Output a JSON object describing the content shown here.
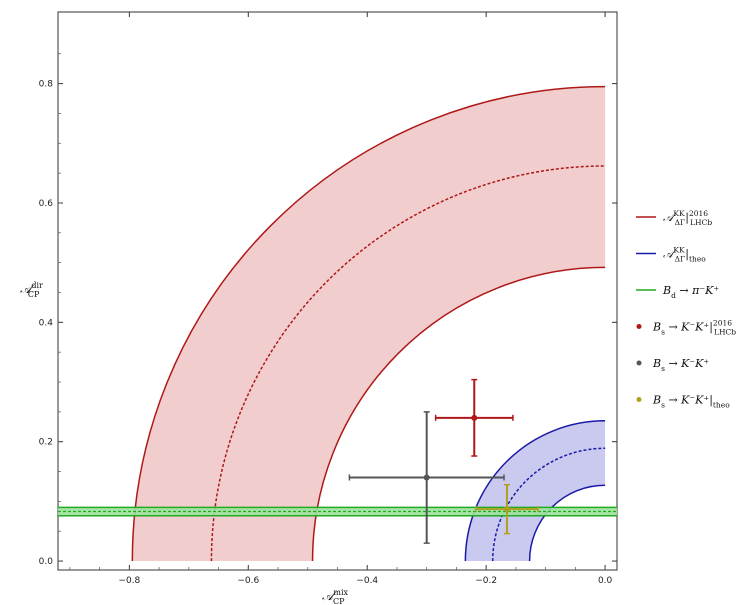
{
  "chart_data": {
    "type": "scatter",
    "xlabel": "𝒜",
    "xlabel_sup": "mix",
    "xlabel_sub": "CP",
    "ylabel": "𝒜",
    "ylabel_sup": "dir",
    "ylabel_sub": "CP",
    "xlim": [
      -0.92,
      0.02
    ],
    "ylim": [
      -0.015,
      0.92
    ],
    "x_ticks": [
      -0.8,
      -0.6,
      -0.4,
      -0.2,
      0.0
    ],
    "x_tick_labels": [
      "−0.8",
      "−0.6",
      "−0.4",
      "−0.2",
      "0.0"
    ],
    "y_ticks": [
      0.0,
      0.2,
      0.4,
      0.6,
      0.8
    ],
    "y_tick_labels": [
      "0.0",
      "0.2",
      "0.4",
      "0.6",
      "0.8"
    ],
    "grid": false,
    "legend_position": "right",
    "bands": [
      {
        "kind": "annulus",
        "r_center": 0.662,
        "r_inner": 0.492,
        "r_outer": 0.795,
        "line_color": "#b01818",
        "fill_color": "#f0c8c8"
      },
      {
        "kind": "annulus",
        "r_center": 0.189,
        "r_inner": 0.127,
        "r_outer": 0.235,
        "line_color": "#1a1aa8",
        "fill_color": "#c4c4ee"
      },
      {
        "kind": "horizontal",
        "y_center": 0.083,
        "y_low": 0.076,
        "y_high": 0.09,
        "line_color": "#22aa22",
        "fill_color": "#9de29d"
      }
    ],
    "points": [
      {
        "x": -0.22,
        "y": 0.24,
        "xerr": 0.065,
        "yerr": 0.064,
        "color": "#b01818"
      },
      {
        "x": -0.3,
        "y": 0.14,
        "xerr": 0.13,
        "yerr": 0.11,
        "color": "#555555"
      },
      {
        "x": -0.165,
        "y": 0.087,
        "xerr": 0.052,
        "yerr": 0.041,
        "color": "#b0a020"
      }
    ],
    "legend": [
      {
        "symbol": "line",
        "color": "#b01818",
        "label": "𝒜",
        "sup": "KK",
        "sub": "ΔΓ",
        "suffix": "|",
        "suffix_sup": "2016",
        "suffix_sub": "LHCb"
      },
      {
        "symbol": "line",
        "color": "#1a1aa8",
        "label": "𝒜",
        "sup": "KK",
        "sub": "ΔΓ",
        "suffix": "|",
        "suffix_sup": "",
        "suffix_sub": "theo"
      },
      {
        "symbol": "line",
        "color": "#22aa22",
        "label": "B",
        "sup": "",
        "sub": "d",
        "suffix": " → π⁻K⁺",
        "suffix_sup": "",
        "suffix_sub": ""
      },
      {
        "symbol": "dot",
        "color": "#b01818",
        "label": "B",
        "sup": "",
        "sub": "s",
        "suffix": " → K⁻K⁺|",
        "suffix_sup": "2016",
        "suffix_sub": "LHCb"
      },
      {
        "symbol": "dot",
        "color": "#555555",
        "label": "B",
        "sup": "",
        "sub": "s",
        "suffix": " → K⁻K⁺",
        "suffix_sup": "",
        "suffix_sub": ""
      },
      {
        "symbol": "dot",
        "color": "#b0a020",
        "label": "B",
        "sup": "",
        "sub": "s",
        "suffix": " → K⁻K⁺|",
        "suffix_sup": "",
        "suffix_sub": "theo"
      }
    ]
  }
}
